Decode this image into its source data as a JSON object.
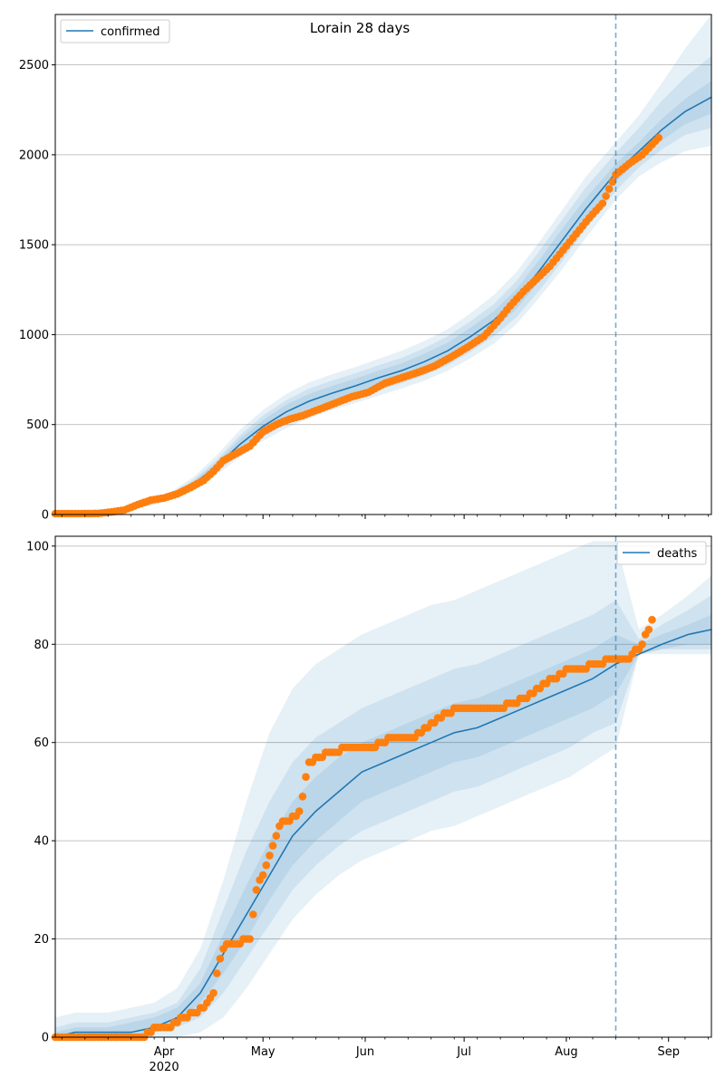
{
  "title": "Lorain 28 days",
  "chart_data": [
    {
      "type": "line",
      "panel": "top",
      "title": "Lorain 28 days",
      "legend": {
        "placement": "top-left",
        "entries": [
          "confirmed"
        ]
      },
      "grid": "y",
      "xlim": [
        "2020-02-28",
        "2020-09-14"
      ],
      "ylim": [
        0,
        2780
      ],
      "yticks": [
        0,
        500,
        1000,
        1500,
        2000,
        2500
      ],
      "forecast_start": "2020-08-16",
      "colors": {
        "model": "#1f77b4",
        "observed": "#ff7f0e",
        "band": "#1f77b4"
      },
      "model_series": {
        "name": "confirmed",
        "x": [
          "2020-02-28",
          "2020-03-10",
          "2020-03-20",
          "2020-03-27",
          "2020-04-03",
          "2020-04-10",
          "2020-04-17",
          "2020-04-24",
          "2020-05-01",
          "2020-05-08",
          "2020-05-15",
          "2020-05-22",
          "2020-05-29",
          "2020-06-05",
          "2020-06-12",
          "2020-06-19",
          "2020-06-26",
          "2020-07-03",
          "2020-07-10",
          "2020-07-17",
          "2020-07-24",
          "2020-07-31",
          "2020-08-07",
          "2020-08-16",
          "2020-08-23",
          "2020-08-30",
          "2020-09-06",
          "2020-09-14"
        ],
        "y": [
          3,
          5,
          25,
          60,
          100,
          170,
          270,
          390,
          490,
          570,
          630,
          675,
          715,
          760,
          800,
          850,
          910,
          990,
          1080,
          1200,
          1360,
          1530,
          1700,
          1900,
          2020,
          2140,
          2240,
          2320
        ]
      },
      "bands": [
        {
          "lower": [
            0,
            2,
            18,
            45,
            80,
            135,
            220,
            320,
            410,
            480,
            535,
            580,
            620,
            660,
            700,
            745,
            800,
            870,
            950,
            1060,
            1210,
            1370,
            1540,
            1750,
            1880,
            1960,
            2020,
            2050
          ],
          "upper": [
            8,
            10,
            35,
            80,
            125,
            210,
            330,
            470,
            580,
            670,
            735,
            780,
            820,
            865,
            910,
            965,
            1030,
            1120,
            1220,
            1350,
            1520,
            1700,
            1880,
            2070,
            2220,
            2400,
            2590,
            2780
          ]
        },
        {
          "lower": [
            1,
            3,
            20,
            50,
            86,
            145,
            235,
            340,
            430,
            505,
            560,
            605,
            645,
            690,
            730,
            775,
            830,
            905,
            990,
            1100,
            1250,
            1415,
            1590,
            1800,
            1930,
            2030,
            2110,
            2150
          ],
          "upper": [
            6,
            8,
            31,
            72,
            116,
            195,
            305,
            440,
            550,
            635,
            700,
            745,
            785,
            830,
            870,
            925,
            990,
            1075,
            1170,
            1300,
            1470,
            1645,
            1820,
            2010,
            2150,
            2300,
            2430,
            2550
          ]
        },
        {
          "lower": [
            2,
            4,
            22,
            54,
            92,
            155,
            250,
            360,
            455,
            530,
            590,
            635,
            675,
            720,
            760,
            805,
            865,
            940,
            1030,
            1145,
            1300,
            1465,
            1640,
            1850,
            1970,
            2080,
            2170,
            2230
          ],
          "upper": [
            4,
            6,
            28,
            66,
            108,
            185,
            290,
            420,
            525,
            610,
            670,
            715,
            755,
            800,
            840,
            895,
            955,
            1040,
            1130,
            1255,
            1420,
            1595,
            1760,
            1950,
            2070,
            2200,
            2310,
            2410
          ]
        }
      ],
      "observed": {
        "x": [
          "2020-02-28",
          "2020-03-05",
          "2020-03-12",
          "2020-03-16",
          "2020-03-20",
          "2020-03-24",
          "2020-03-28",
          "2020-04-01",
          "2020-04-05",
          "2020-04-09",
          "2020-04-13",
          "2020-04-16",
          "2020-04-19",
          "2020-04-23",
          "2020-04-27",
          "2020-05-01",
          "2020-05-05",
          "2020-05-09",
          "2020-05-13",
          "2020-05-18",
          "2020-05-23",
          "2020-05-28",
          "2020-06-02",
          "2020-06-07",
          "2020-06-12",
          "2020-06-17",
          "2020-06-22",
          "2020-06-27",
          "2020-07-02",
          "2020-07-07",
          "2020-07-11",
          "2020-07-15",
          "2020-07-19",
          "2020-07-23",
          "2020-07-27",
          "2020-07-31",
          "2020-08-04",
          "2020-08-08",
          "2020-08-12",
          "2020-08-16",
          "2020-08-20",
          "2020-08-24",
          "2020-08-29"
        ],
        "y": [
          5,
          5,
          6,
          14,
          25,
          55,
          80,
          92,
          115,
          150,
          190,
          240,
          300,
          340,
          380,
          460,
          500,
          530,
          550,
          585,
          620,
          655,
          680,
          730,
          760,
          790,
          825,
          875,
          930,
          990,
          1070,
          1160,
          1240,
          1310,
          1380,
          1470,
          1560,
          1650,
          1730,
          1890,
          1950,
          2000,
          2095
        ]
      }
    },
    {
      "type": "line",
      "panel": "bottom",
      "legend": {
        "placement": "top-right",
        "entries": [
          "deaths"
        ]
      },
      "grid": "y",
      "xlim": [
        "2020-02-28",
        "2020-09-14"
      ],
      "ylim": [
        0,
        102
      ],
      "yticks": [
        0,
        20,
        40,
        60,
        80,
        100
      ],
      "xticks": [
        "2020-04-01",
        "2020-05-01",
        "2020-06-01",
        "2020-07-01",
        "2020-08-01",
        "2020-09-01"
      ],
      "xtick_labels": [
        "Apr",
        "May",
        "Jun",
        "Jul",
        "Aug",
        "Sep"
      ],
      "year_label": "2020",
      "forecast_start": "2020-08-16",
      "model_series": {
        "name": "deaths",
        "x": [
          "2020-02-28",
          "2020-03-05",
          "2020-03-15",
          "2020-03-22",
          "2020-03-29",
          "2020-04-05",
          "2020-04-12",
          "2020-04-19",
          "2020-04-26",
          "2020-05-03",
          "2020-05-10",
          "2020-05-17",
          "2020-05-24",
          "2020-05-31",
          "2020-06-07",
          "2020-06-14",
          "2020-06-21",
          "2020-06-28",
          "2020-07-05",
          "2020-07-12",
          "2020-07-19",
          "2020-07-26",
          "2020-08-02",
          "2020-08-09",
          "2020-08-16",
          "2020-08-23",
          "2020-08-30",
          "2020-09-07",
          "2020-09-14"
        ],
        "y": [
          0,
          1,
          1,
          1,
          2,
          4,
          9,
          17,
          25,
          33,
          41,
          46,
          50,
          54,
          56,
          58,
          60,
          62,
          63,
          65,
          67,
          69,
          71,
          73,
          76,
          78,
          80,
          82,
          83
        ]
      },
      "bands": [
        {
          "lower": [
            0,
            0,
            0,
            0,
            0,
            0,
            1,
            4,
            10,
            17,
            24,
            29,
            33,
            36,
            38,
            40,
            42,
            43,
            45,
            47,
            49,
            51,
            53,
            56,
            59,
            78,
            78,
            78,
            78
          ],
          "upper": [
            4,
            5,
            5,
            6,
            7,
            10,
            18,
            32,
            48,
            62,
            71,
            76,
            79,
            82,
            84,
            86,
            88,
            89,
            91,
            93,
            95,
            97,
            99,
            101,
            101,
            83,
            86,
            90,
            94
          ]
        },
        {
          "lower": [
            0,
            0,
            0,
            0,
            1,
            2,
            4,
            9,
            16,
            23,
            30,
            35,
            39,
            42,
            44,
            46,
            48,
            50,
            51,
            53,
            55,
            57,
            59,
            62,
            64,
            78,
            79,
            79,
            79
          ],
          "upper": [
            2,
            3,
            3,
            4,
            5,
            7,
            14,
            26,
            38,
            48,
            56,
            61,
            64,
            67,
            69,
            71,
            73,
            75,
            76,
            78,
            80,
            82,
            84,
            86,
            89,
            81,
            84,
            87,
            90
          ]
        },
        {
          "lower": [
            0,
            0,
            0,
            0,
            1,
            3,
            7,
            13,
            20,
            28,
            35,
            40,
            44,
            48,
            50,
            52,
            54,
            56,
            57,
            59,
            61,
            63,
            65,
            67,
            70,
            78,
            79,
            80,
            80
          ],
          "upper": [
            1,
            2,
            2,
            3,
            4,
            6,
            11,
            21,
            31,
            40,
            48,
            53,
            57,
            60,
            62,
            64,
            66,
            68,
            69,
            71,
            73,
            75,
            77,
            79,
            82,
            80,
            82,
            84,
            86
          ]
        }
      ],
      "observed": {
        "x": [
          "2020-02-28",
          "2020-03-10",
          "2020-03-26",
          "2020-03-30",
          "2020-04-03",
          "2020-04-07",
          "2020-04-10",
          "2020-04-13",
          "2020-04-16",
          "2020-04-18",
          "2020-04-20",
          "2020-04-23",
          "2020-04-27",
          "2020-04-29",
          "2020-05-01",
          "2020-05-03",
          "2020-05-05",
          "2020-05-07",
          "2020-05-09",
          "2020-05-12",
          "2020-05-15",
          "2020-05-18",
          "2020-05-22",
          "2020-05-28",
          "2020-06-03",
          "2020-06-09",
          "2020-06-15",
          "2020-06-20",
          "2020-06-25",
          "2020-07-01",
          "2020-07-07",
          "2020-07-12",
          "2020-07-16",
          "2020-07-20",
          "2020-07-24",
          "2020-07-28",
          "2020-08-02",
          "2020-08-06",
          "2020-08-10",
          "2020-08-16",
          "2020-08-20",
          "2020-08-24",
          "2020-08-27"
        ],
        "y": [
          0,
          0,
          0,
          2,
          2,
          4,
          5,
          6,
          9,
          16,
          19,
          19,
          20,
          30,
          33,
          37,
          41,
          44,
          44,
          46,
          56,
          57,
          58,
          59,
          59,
          61,
          61,
          63,
          66,
          67,
          67,
          67,
          68,
          69,
          71,
          73,
          75,
          75,
          76,
          77,
          77,
          80,
          85
        ]
      }
    }
  ]
}
